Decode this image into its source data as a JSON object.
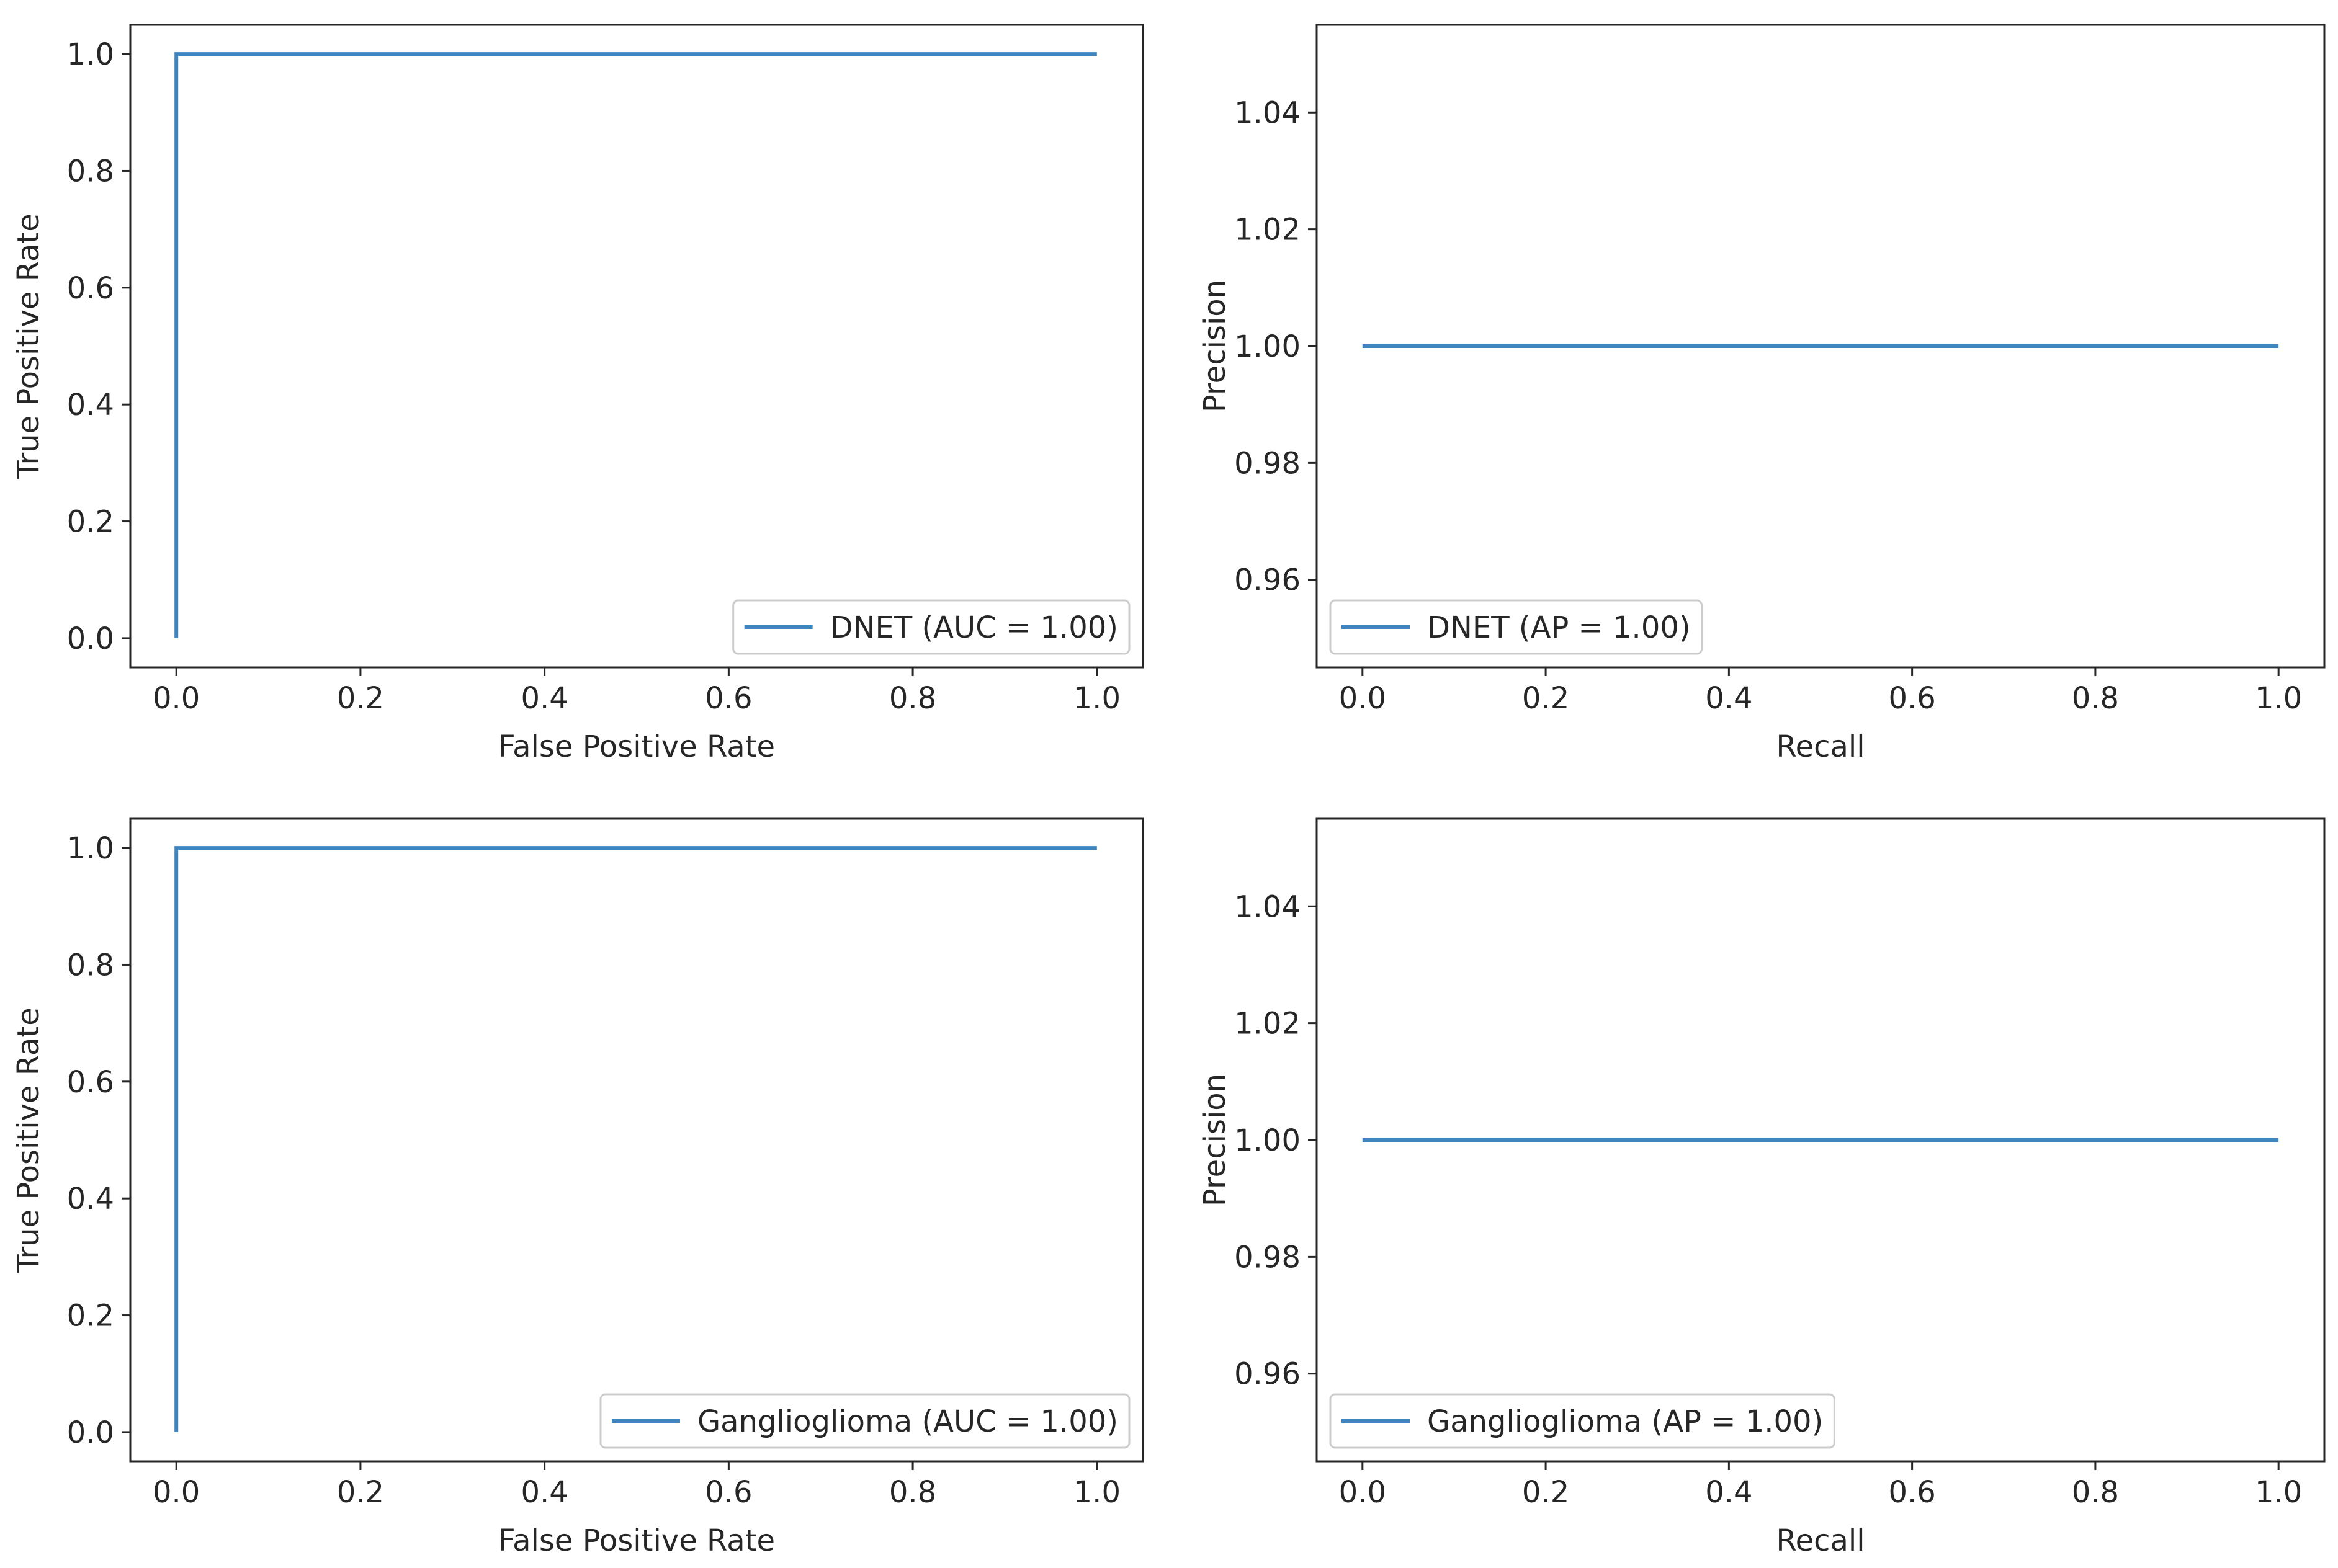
{
  "figure": {
    "colors": {
      "line": "#3f86c0",
      "axes": "#262626",
      "legend_border": "#cccccc",
      "background": "#ffffff"
    }
  },
  "chart_data": [
    {
      "id": "roc-dnet",
      "type": "line",
      "xlabel": "False Positive Rate",
      "ylabel": "True Positive Rate",
      "xlim": [
        -0.05,
        1.05
      ],
      "ylim": [
        -0.05,
        1.05
      ],
      "xticks": [
        0.0,
        0.2,
        0.4,
        0.6,
        0.8,
        1.0
      ],
      "xtick_labels": [
        "0.0",
        "0.2",
        "0.4",
        "0.6",
        "0.8",
        "1.0"
      ],
      "yticks": [
        0.0,
        0.2,
        0.4,
        0.6,
        0.8,
        1.0
      ],
      "ytick_labels": [
        "0.0",
        "0.2",
        "0.4",
        "0.6",
        "0.8",
        "1.0"
      ],
      "series": [
        {
          "name": "DNET (AUC = 1.00)",
          "x": [
            0,
            0,
            1
          ],
          "y": [
            0,
            1,
            1
          ]
        }
      ],
      "legend": "lower-right"
    },
    {
      "id": "pr-dnet",
      "type": "line",
      "xlabel": "Recall",
      "ylabel": "Precision",
      "xlim": [
        -0.05,
        1.05
      ],
      "ylim": [
        0.945,
        1.055
      ],
      "xticks": [
        0.0,
        0.2,
        0.4,
        0.6,
        0.8,
        1.0
      ],
      "xtick_labels": [
        "0.0",
        "0.2",
        "0.4",
        "0.6",
        "0.8",
        "1.0"
      ],
      "yticks": [
        0.96,
        0.98,
        1.0,
        1.02,
        1.04
      ],
      "ytick_labels": [
        "0.96",
        "0.98",
        "1.00",
        "1.02",
        "1.04"
      ],
      "series": [
        {
          "name": "DNET (AP = 1.00)",
          "x": [
            0,
            1
          ],
          "y": [
            1,
            1
          ]
        }
      ],
      "legend": "lower-left"
    },
    {
      "id": "roc-ganglioglioma",
      "type": "line",
      "xlabel": "False Positive Rate",
      "ylabel": "True Positive Rate",
      "xlim": [
        -0.05,
        1.05
      ],
      "ylim": [
        -0.05,
        1.05
      ],
      "xticks": [
        0.0,
        0.2,
        0.4,
        0.6,
        0.8,
        1.0
      ],
      "xtick_labels": [
        "0.0",
        "0.2",
        "0.4",
        "0.6",
        "0.8",
        "1.0"
      ],
      "yticks": [
        0.0,
        0.2,
        0.4,
        0.6,
        0.8,
        1.0
      ],
      "ytick_labels": [
        "0.0",
        "0.2",
        "0.4",
        "0.6",
        "0.8",
        "1.0"
      ],
      "series": [
        {
          "name": "Ganglioglioma (AUC = 1.00)",
          "x": [
            0,
            0,
            1
          ],
          "y": [
            0,
            1,
            1
          ]
        }
      ],
      "legend": "lower-right"
    },
    {
      "id": "pr-ganglioglioma",
      "type": "line",
      "xlabel": "Recall",
      "ylabel": "Precision",
      "xlim": [
        -0.05,
        1.05
      ],
      "ylim": [
        0.945,
        1.055
      ],
      "xticks": [
        0.0,
        0.2,
        0.4,
        0.6,
        0.8,
        1.0
      ],
      "xtick_labels": [
        "0.0",
        "0.2",
        "0.4",
        "0.6",
        "0.8",
        "1.0"
      ],
      "yticks": [
        0.96,
        0.98,
        1.0,
        1.02,
        1.04
      ],
      "ytick_labels": [
        "0.96",
        "0.98",
        "1.00",
        "1.02",
        "1.04"
      ],
      "series": [
        {
          "name": "Ganglioglioma (AP = 1.00)",
          "x": [
            0,
            1
          ],
          "y": [
            1,
            1
          ]
        }
      ],
      "legend": "lower-left"
    }
  ]
}
